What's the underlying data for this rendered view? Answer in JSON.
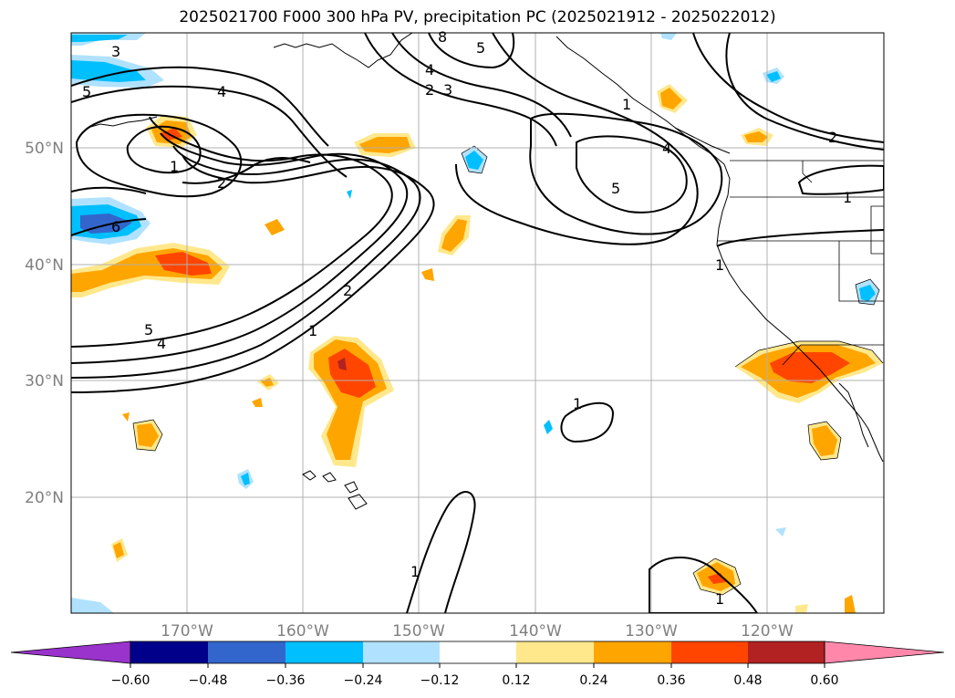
{
  "title": "2025021700 F000 300 hPa PV, precipitation PC (2025021912 - 2025022012)",
  "map": {
    "lat_labels": [
      "50°N",
      "40°N",
      "30°N",
      "20°N"
    ],
    "lon_labels": [
      "170°W",
      "160°W",
      "150°W",
      "140°W",
      "130°W",
      "120°W"
    ],
    "contour_labels": {
      "a": "3",
      "b": "5",
      "c": "4",
      "d": "1",
      "e": "2",
      "f": "6",
      "g": "5",
      "h": "4",
      "i": "1",
      "j": "2",
      "k": "4",
      "l": "2",
      "m": "3",
      "n": "5",
      "o": "1",
      "p": "4",
      "q": "5",
      "r": "2",
      "s": "1",
      "t": "1",
      "u": "1",
      "v": "1",
      "w": "1",
      "x": "8"
    }
  },
  "colorbar": {
    "ticks": [
      "−0.60",
      "−0.48",
      "−0.36",
      "−0.24",
      "−0.12",
      "0.12",
      "0.24",
      "0.36",
      "0.48",
      "0.60"
    ],
    "colors": [
      "#9933cc",
      "#00008b",
      "#3366cc",
      "#00bfff",
      "#b0e2ff",
      "#ffffff",
      "#ffe88c",
      "#ffa500",
      "#ff4500",
      "#b22222",
      "#ff88aa"
    ]
  }
}
